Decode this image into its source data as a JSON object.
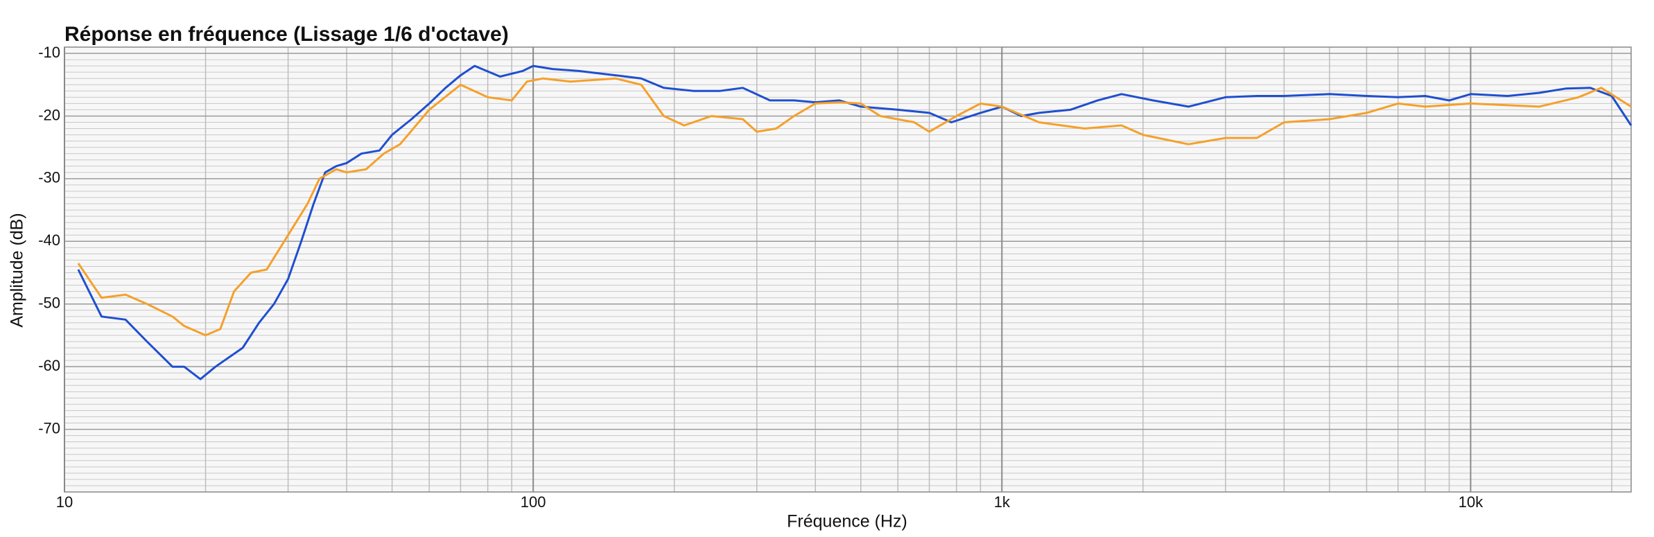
{
  "chart_data": {
    "type": "line",
    "title": "Réponse en fréquence (Lissage 1/6 d'octave)",
    "x_label": "Fréquence (Hz)",
    "y_label": "Amplitude (dB)",
    "x_log": true,
    "grid": true,
    "xlim": [
      10,
      22000
    ],
    "ylim": [
      -80,
      -9
    ],
    "xticks": [
      10,
      100,
      {
        "value": 1000,
        "label": "1k"
      },
      {
        "value": 10000,
        "label": "10k"
      }
    ],
    "yticks": [
      -70,
      -60,
      -50,
      -40,
      -30,
      -20,
      -10
    ],
    "xminor": [
      20,
      30,
      40,
      50,
      60,
      70,
      80,
      90,
      200,
      300,
      400,
      500,
      600,
      700,
      800,
      900,
      2000,
      3000,
      4000,
      5000,
      6000,
      7000,
      8000,
      9000,
      20000
    ],
    "yminor": [
      -79,
      -78,
      -77,
      -76,
      -75,
      -74,
      -73,
      -72,
      -71,
      -69,
      -68,
      -67,
      -66,
      -65,
      -64,
      -63,
      -62,
      -61,
      -59,
      -58,
      -57,
      -56,
      -55,
      -54,
      -53,
      -52,
      -51,
      -49,
      -48,
      -47,
      -46,
      -45,
      -44,
      -43,
      -42,
      -41,
      -39,
      -38,
      -37,
      -36,
      -35,
      -34,
      -33,
      -32,
      -31,
      -29,
      -28,
      -27,
      -26,
      -25,
      -24,
      -23,
      -22,
      -21,
      -19,
      -18,
      -17,
      -16,
      -15,
      -14,
      -13,
      -12,
      -11
    ],
    "series": [
      {
        "color": "#1f4fd0",
        "x": [
          10.7,
          12,
          13.5,
          15,
          17,
          18,
          19.5,
          21,
          24,
          26,
          28,
          30,
          32,
          34,
          36,
          38,
          40,
          43,
          47,
          50,
          55,
          60,
          65,
          70,
          75,
          85,
          95,
          100,
          110,
          125,
          150,
          170,
          190,
          220,
          250,
          280,
          320,
          360,
          400,
          450,
          500,
          600,
          700,
          780,
          900,
          1000,
          1100,
          1200,
          1400,
          1600,
          1800,
          2100,
          2500,
          3000,
          3500,
          4000,
          5000,
          6000,
          7000,
          8000,
          9000,
          10000,
          12000,
          14000,
          16000,
          18000,
          20000,
          22000
        ],
        "values": [
          -44.5,
          -52,
          -52.5,
          -56,
          -60,
          -60,
          -62,
          -60,
          -57,
          -53,
          -50,
          -46,
          -40,
          -34,
          -29,
          -28,
          -27.5,
          -26,
          -25.5,
          -23,
          -20.5,
          -18,
          -15.5,
          -13.5,
          -12,
          -13.7,
          -12.8,
          -12,
          -12.5,
          -12.8,
          -13.5,
          -14,
          -15.5,
          -16,
          -16,
          -15.5,
          -17.5,
          -17.5,
          -17.8,
          -17.5,
          -18.5,
          -19,
          -19.5,
          -21,
          -19.5,
          -18.5,
          -20,
          -19.5,
          -19,
          -17.5,
          -16.5,
          -17.5,
          -18.5,
          -17,
          -16.8,
          -16.8,
          -16.5,
          -16.8,
          -17,
          -16.8,
          -17.5,
          -16.5,
          -16.8,
          -16.3,
          -15.6,
          -15.5,
          -16.8,
          -21.5
        ]
      },
      {
        "color": "#f5a02a",
        "x": [
          10.7,
          12,
          13.5,
          15,
          17,
          18,
          20,
          21.5,
          23,
          25,
          27,
          30,
          33,
          35,
          38,
          40,
          44,
          48,
          52,
          60,
          70,
          80,
          90,
          97,
          105,
          120,
          150,
          170,
          190,
          210,
          240,
          280,
          300,
          330,
          360,
          400,
          450,
          500,
          550,
          650,
          700,
          800,
          900,
          1000,
          1200,
          1500,
          1800,
          2000,
          2500,
          3000,
          3500,
          4000,
          5000,
          6000,
          7000,
          8000,
          10000,
          14000,
          17000,
          19000,
          22000
        ],
        "values": [
          -43.5,
          -49,
          -48.5,
          -50,
          -52,
          -53.5,
          -55,
          -54,
          -48,
          -45,
          -44.5,
          -39,
          -34,
          -30,
          -28.5,
          -29,
          -28.5,
          -26,
          -24.5,
          -19,
          -15,
          -17,
          -17.5,
          -14.5,
          -14,
          -14.5,
          -14,
          -15,
          -20,
          -21.5,
          -20,
          -20.5,
          -22.5,
          -22,
          -20,
          -18,
          -17.8,
          -18,
          -20,
          -21,
          -22.5,
          -20,
          -18,
          -18.5,
          -21,
          -22,
          -21.5,
          -23,
          -24.5,
          -23.5,
          -23.5,
          -21,
          -20.5,
          -19.5,
          -18,
          -18.5,
          -18,
          -18.5,
          -17,
          -15.5,
          -18.5
        ]
      }
    ]
  }
}
